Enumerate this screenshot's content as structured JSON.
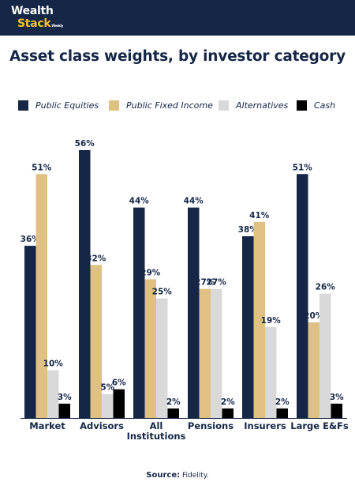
{
  "brand": {
    "line1": "Wealth",
    "line2": "Stack",
    "tag": "Weekly"
  },
  "title": "Asset class weights, by investor category",
  "source": {
    "label": "Source:",
    "text": "Fidelity."
  },
  "colors": {
    "header_bg": "#152647",
    "brand_accent": "#f2c230",
    "text": "#152647"
  },
  "chart_data": {
    "type": "bar",
    "title": "Asset class weights, by investor category",
    "xlabel": "",
    "ylabel": "",
    "ylim": [
      0,
      60
    ],
    "grid": false,
    "legend_position": "top",
    "value_suffix": "%",
    "categories": [
      "Market",
      "Advisors",
      "All Institutions",
      "Pensions",
      "Insurers",
      "Large E&Fs"
    ],
    "category_lines": [
      [
        "Market"
      ],
      [
        "Advisors"
      ],
      [
        "All",
        "Institutions"
      ],
      [
        "Pensions"
      ],
      [
        "Insurers"
      ],
      [
        "Large E&Fs"
      ]
    ],
    "series": [
      {
        "name": "Public Equities",
        "color": "#152647",
        "values": [
          36,
          56,
          44,
          44,
          38,
          51
        ]
      },
      {
        "name": "Public Fixed Income",
        "color": "#dfc283",
        "values": [
          51,
          32,
          29,
          27,
          41,
          20
        ]
      },
      {
        "name": "Alternatives",
        "color": "#d9d9d9",
        "values": [
          10,
          5,
          25,
          27,
          19,
          26
        ]
      },
      {
        "name": "Cash",
        "color": "#000000",
        "values": [
          3,
          6,
          2,
          2,
          2,
          3
        ]
      }
    ]
  }
}
